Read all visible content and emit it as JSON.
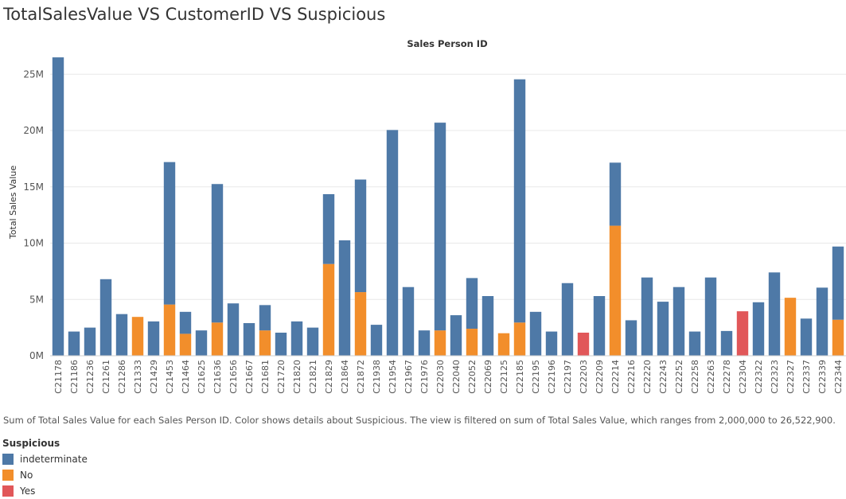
{
  "title": "TotalSalesValue VS CustomerID VS Suspicious",
  "caption": "Sum of Total Sales Value for each Sales Person ID.  Color shows details about Suspicious. The view is filtered on sum of Total Sales Value, which ranges from 2,000,000 to 26,522,900.",
  "legend": {
    "title": "Suspicious",
    "items": [
      {
        "label": "indeterminate",
        "color": "#4e79a7"
      },
      {
        "label": "No",
        "color": "#f28e2b"
      },
      {
        "label": "Yes",
        "color": "#e15759"
      }
    ]
  },
  "chart_data": {
    "type": "bar",
    "stacked": true,
    "column_header": "Sales Person ID",
    "ylabel": "Total Sales Value",
    "ylim": [
      0,
      27000000
    ],
    "yticks": [
      0,
      5000000,
      10000000,
      15000000,
      20000000,
      25000000
    ],
    "ytick_labels": [
      "0M",
      "5M",
      "10M",
      "15M",
      "20M",
      "25M"
    ],
    "categories": [
      "C21178",
      "C21186",
      "C21236",
      "C21261",
      "C21286",
      "C21333",
      "C21429",
      "C21453",
      "C21464",
      "C21625",
      "C21636",
      "C21656",
      "C21667",
      "C21681",
      "C21720",
      "C21820",
      "C21821",
      "C21829",
      "C21864",
      "C21872",
      "C21938",
      "C21954",
      "C21967",
      "C21976",
      "C22030",
      "C22040",
      "C22052",
      "C22069",
      "C22125",
      "C22185",
      "C22195",
      "C22196",
      "C22197",
      "C22203",
      "C22209",
      "C22214",
      "C22216",
      "C22220",
      "C22243",
      "C22252",
      "C22258",
      "C22263",
      "C22278",
      "C22304",
      "C22322",
      "C22323",
      "C22327",
      "C22337",
      "C22339",
      "C22344"
    ],
    "series": [
      {
        "name": "No",
        "color": "#f28e2b",
        "values": [
          0,
          0,
          0,
          0,
          0,
          3450000,
          0,
          4550000,
          1950000,
          0,
          2950000,
          0,
          0,
          2250000,
          0,
          0,
          0,
          8150000,
          0,
          5650000,
          0,
          0,
          0,
          0,
          2250000,
          0,
          2400000,
          0,
          2000000,
          2950000,
          0,
          0,
          0,
          0,
          0,
          11550000,
          0,
          0,
          0,
          0,
          0,
          0,
          0,
          0,
          0,
          0,
          5150000,
          0,
          0,
          3200000
        ]
      },
      {
        "name": "Yes",
        "color": "#e15759",
        "values": [
          0,
          0,
          0,
          0,
          0,
          0,
          0,
          0,
          0,
          0,
          0,
          0,
          0,
          0,
          0,
          0,
          0,
          0,
          0,
          0,
          0,
          0,
          0,
          0,
          0,
          0,
          0,
          0,
          0,
          0,
          0,
          0,
          0,
          2050000,
          0,
          0,
          0,
          0,
          0,
          0,
          0,
          0,
          0,
          3950000,
          0,
          0,
          0,
          0,
          0,
          0
        ]
      },
      {
        "name": "indeterminate",
        "color": "#4e79a7",
        "values": [
          26500000,
          2150000,
          2500000,
          6800000,
          3700000,
          0,
          3050000,
          12650000,
          1950000,
          2250000,
          12300000,
          4650000,
          2900000,
          2250000,
          2050000,
          3050000,
          2500000,
          6200000,
          10250000,
          10000000,
          2750000,
          20050000,
          6100000,
          2250000,
          18450000,
          3600000,
          4500000,
          5300000,
          0,
          21600000,
          3900000,
          2150000,
          6450000,
          0,
          5300000,
          5600000,
          3150000,
          6950000,
          4800000,
          6100000,
          2150000,
          6950000,
          2200000,
          0,
          4750000,
          7400000,
          0,
          3300000,
          6050000,
          6500000
        ]
      }
    ],
    "grid": "horizontal",
    "legend_position": "bottom-left"
  }
}
